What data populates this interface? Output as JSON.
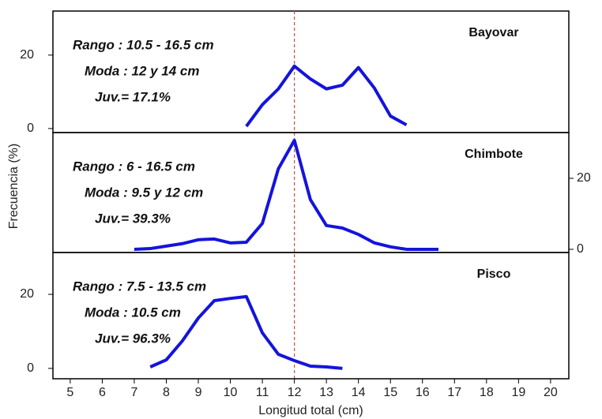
{
  "chart_data": [
    {
      "type": "line",
      "title": "Bayovar",
      "annotations": [
        "Rango : 10.5 - 16.5 cm",
        "Moda : 12 y 14 cm",
        "Juv.= 17.1%"
      ],
      "x": [
        10.5,
        11,
        11.5,
        12,
        12.5,
        13,
        13.5,
        14,
        14.5,
        15,
        15.5
      ],
      "values": [
        0.6,
        6.5,
        10.8,
        17,
        13.5,
        10.8,
        11.8,
        16.6,
        11,
        3.4,
        1
      ],
      "color": "#1414dc",
      "xlim": [
        4.46,
        20.57
      ],
      "ylim": [
        -1.1,
        32
      ],
      "yticks": [
        0,
        20
      ],
      "y_axis_side": "left",
      "vline": 12,
      "vline_color": "#c0504d"
    },
    {
      "type": "line",
      "title": "Chimbote",
      "annotations": [
        "Rango : 6 - 16.5 cm",
        "Moda : 9.5 y 12 cm",
        "Juv.= 39.3%"
      ],
      "x": [
        7,
        7.5,
        8,
        8.5,
        9,
        9.5,
        10,
        10.5,
        11,
        11.5,
        12,
        12.5,
        13,
        13.5,
        14,
        14.5,
        15,
        15.5,
        16,
        16.5
      ],
      "values": [
        0,
        0.2,
        0.9,
        1.6,
        2.7,
        2.9,
        1.8,
        2,
        7.3,
        22.7,
        30.7,
        14,
        6.7,
        6,
        4.2,
        1.8,
        0.7,
        0,
        0,
        0
      ],
      "color": "#1414dc",
      "xlim": [
        4.46,
        20.57
      ],
      "ylim": [
        -0.9,
        32.9
      ],
      "yticks": [
        0,
        20
      ],
      "y_axis_side": "right",
      "y_label": "Frecuencia (%)"
    },
    {
      "type": "line",
      "title": "Pisco",
      "annotations": [
        "Rango : 7.5 - 13.5 cm",
        "Moda : 10.5 cm",
        "Juv.= 96.3%"
      ],
      "x": [
        7.5,
        8,
        8.5,
        9,
        9.5,
        10,
        10.5,
        11,
        11.5,
        12,
        12.5,
        13,
        13.5
      ],
      "values": [
        0.4,
        2.3,
        7.4,
        13.6,
        18.3,
        18.9,
        19.4,
        9.6,
        3.8,
        2.1,
        0.6,
        0.4,
        0
      ],
      "color": "#1414dc",
      "xlim": [
        4.46,
        20.57
      ],
      "ylim": [
        -2.8,
        31.3
      ],
      "yticks": [
        0,
        20
      ],
      "y_axis_side": "left",
      "xticks": [
        5,
        6,
        7,
        8,
        9,
        10,
        11,
        12,
        13,
        14,
        15,
        16,
        17,
        18,
        19,
        20
      ],
      "x_label": "Longitud total (cm)"
    }
  ]
}
